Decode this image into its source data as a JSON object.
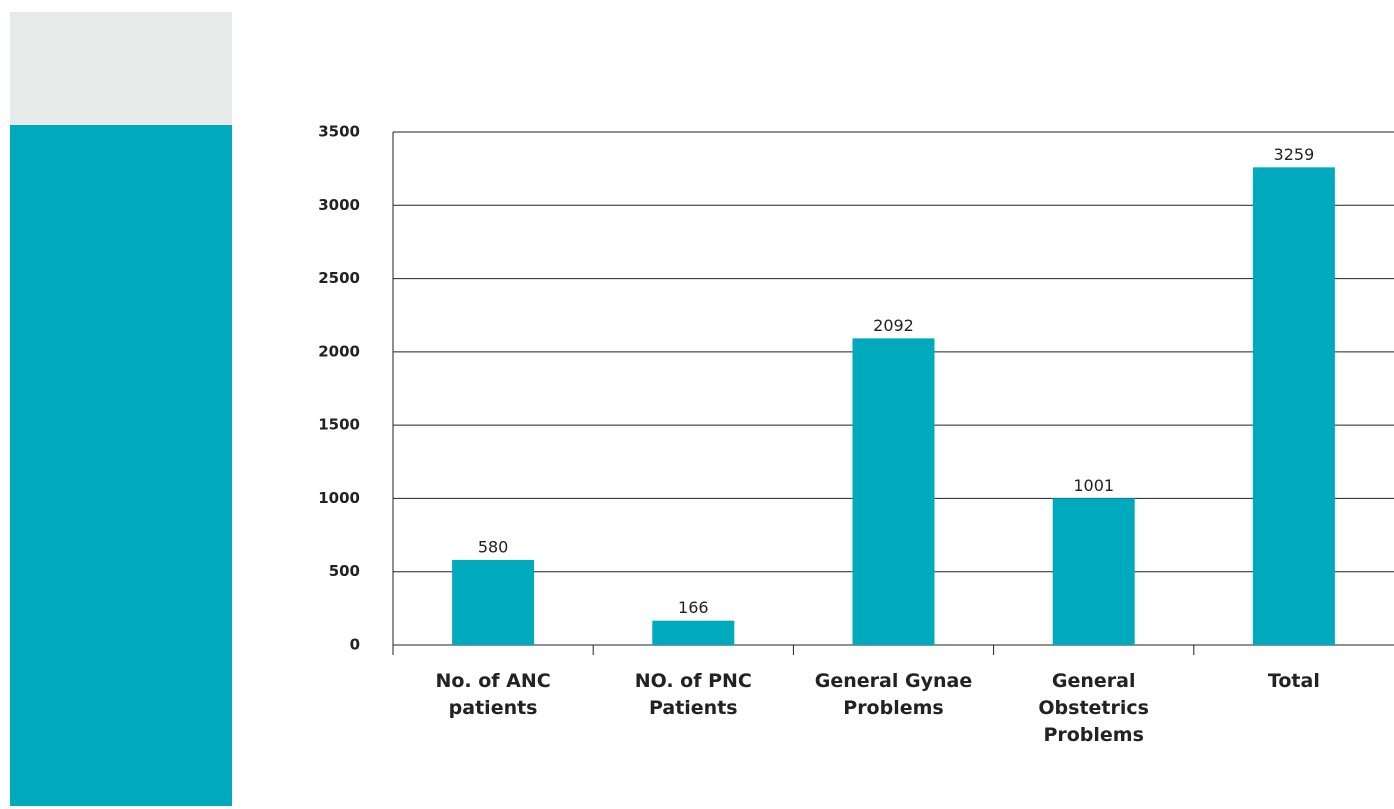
{
  "chart_data": {
    "type": "bar",
    "categories": [
      "No. of ANC patients",
      "NO. of PNC Patients",
      "General Gynae Problems",
      "General Obstetrics Problems",
      "Total"
    ],
    "values": [
      580,
      166,
      2092,
      1001,
      3259
    ],
    "color": "#00aabd",
    "ylim": [
      0,
      3500
    ],
    "yticks": [
      0,
      500,
      1000,
      1500,
      2000,
      2500,
      3000,
      3500
    ],
    "grid": true
  }
}
